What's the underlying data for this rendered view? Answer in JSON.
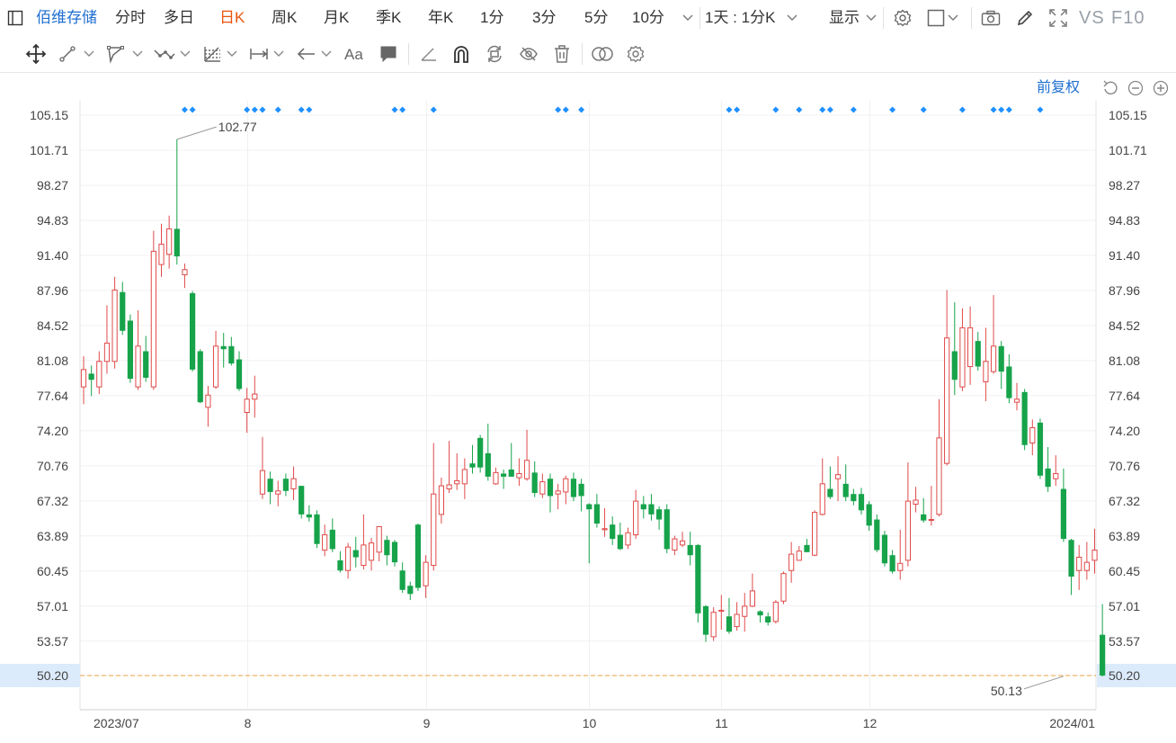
{
  "topbar": {
    "stock_name": "佰维存储",
    "periods": [
      "分时",
      "多日",
      "日K",
      "周K",
      "月K",
      "季K",
      "年K",
      "1分",
      "3分",
      "5分",
      "10分"
    ],
    "active_period": "日K",
    "combo_label": "1天 : 1分K",
    "display_label": "显示",
    "vs_label": "VS",
    "f10_label": "F10"
  },
  "controls": {
    "adjust_label": "前复权"
  },
  "colors": {
    "up": "#e04a4a",
    "down": "#16a34a",
    "active_tab": "#e8540c",
    "link": "#1f6fd1",
    "price_line": "#f0a040",
    "price_highlight_bg": "#dcebfb",
    "event_marker": "#1e90ff"
  },
  "chart_data": {
    "type": "candlestick",
    "y_ticks": [
      "105.15",
      "101.71",
      "98.27",
      "94.83",
      "91.40",
      "87.96",
      "84.52",
      "81.08",
      "77.64",
      "74.20",
      "70.76",
      "67.32",
      "63.89",
      "60.45",
      "57.01",
      "53.57",
      "50.20"
    ],
    "ylim": [
      50.2,
      105.15
    ],
    "x_labels": [
      "2023/07",
      "8",
      "9",
      "10",
      "11",
      "12",
      "2024/01"
    ],
    "x_label_index": [
      0,
      21,
      44,
      65,
      82,
      101,
      126
    ],
    "max_marker": {
      "index": 12,
      "value": "102.77"
    },
    "min_marker": {
      "index": 126,
      "value": "50.13"
    },
    "current_price": "50.20",
    "event_marker_index": [
      13,
      14,
      21,
      22,
      23,
      25,
      28,
      29,
      40,
      41,
      45,
      61,
      62,
      64,
      83,
      84,
      89,
      92,
      95,
      96,
      99,
      104,
      108,
      113,
      117,
      118,
      119,
      123
    ],
    "candles": [
      {
        "o": 78.5,
        "h": 81.5,
        "l": 76.8,
        "c": 80.2
      },
      {
        "o": 79.8,
        "h": 80.6,
        "l": 77.6,
        "c": 79.2
      },
      {
        "o": 78.5,
        "h": 82.0,
        "l": 77.8,
        "c": 81.0
      },
      {
        "o": 81.0,
        "h": 86.5,
        "l": 79.8,
        "c": 82.8
      },
      {
        "o": 81.0,
        "h": 89.3,
        "l": 80.3,
        "c": 88.0
      },
      {
        "o": 87.8,
        "h": 88.8,
        "l": 83.6,
        "c": 84.0
      },
      {
        "o": 85.0,
        "h": 85.6,
        "l": 78.9,
        "c": 79.3
      },
      {
        "o": 78.5,
        "h": 86.0,
        "l": 78.2,
        "c": 82.5
      },
      {
        "o": 82.0,
        "h": 83.5,
        "l": 79.0,
        "c": 79.4
      },
      {
        "o": 78.5,
        "h": 93.8,
        "l": 78.2,
        "c": 91.8
      },
      {
        "o": 90.5,
        "h": 94.5,
        "l": 89.3,
        "c": 92.5
      },
      {
        "o": 91.5,
        "h": 95.3,
        "l": 90.1,
        "c": 94.0
      },
      {
        "o": 94.0,
        "h": 102.8,
        "l": 90.5,
        "c": 91.3
      },
      {
        "o": 89.5,
        "h": 90.6,
        "l": 88.2,
        "c": 90.0
      },
      {
        "o": 87.7,
        "h": 87.9,
        "l": 80.0,
        "c": 80.2
      },
      {
        "o": 82.0,
        "h": 82.2,
        "l": 76.9,
        "c": 77.0
      },
      {
        "o": 76.5,
        "h": 78.6,
        "l": 74.6,
        "c": 77.7
      },
      {
        "o": 78.5,
        "h": 84.0,
        "l": 78.3,
        "c": 82.5
      },
      {
        "o": 82.5,
        "h": 83.8,
        "l": 80.4,
        "c": 82.2
      },
      {
        "o": 82.5,
        "h": 83.4,
        "l": 80.6,
        "c": 80.8
      },
      {
        "o": 81.2,
        "h": 82.0,
        "l": 78.1,
        "c": 78.3
      },
      {
        "o": 76.0,
        "h": 78.4,
        "l": 74.0,
        "c": 77.3
      },
      {
        "o": 77.3,
        "h": 79.6,
        "l": 75.5,
        "c": 77.8
      },
      {
        "o": 68.0,
        "h": 73.6,
        "l": 67.5,
        "c": 70.3
      },
      {
        "o": 69.5,
        "h": 70.2,
        "l": 67.0,
        "c": 68.2
      },
      {
        "o": 68.0,
        "h": 69.3,
        "l": 66.8,
        "c": 68.3
      },
      {
        "o": 69.5,
        "h": 70.0,
        "l": 67.8,
        "c": 68.3
      },
      {
        "o": 68.5,
        "h": 70.7,
        "l": 67.4,
        "c": 69.5
      },
      {
        "o": 68.8,
        "h": 68.8,
        "l": 65.6,
        "c": 66.0
      },
      {
        "o": 66.0,
        "h": 66.9,
        "l": 65.3,
        "c": 65.7
      },
      {
        "o": 66.0,
        "h": 66.4,
        "l": 62.7,
        "c": 63.1
      },
      {
        "o": 62.5,
        "h": 65.0,
        "l": 61.9,
        "c": 64.0
      },
      {
        "o": 64.5,
        "h": 65.6,
        "l": 62.3,
        "c": 62.6
      },
      {
        "o": 61.5,
        "h": 62.4,
        "l": 60.3,
        "c": 60.5
      },
      {
        "o": 60.5,
        "h": 63.2,
        "l": 59.7,
        "c": 62.8
      },
      {
        "o": 62.5,
        "h": 63.8,
        "l": 60.8,
        "c": 61.8
      },
      {
        "o": 61.0,
        "h": 66.0,
        "l": 60.6,
        "c": 63.0
      },
      {
        "o": 61.5,
        "h": 63.7,
        "l": 60.5,
        "c": 63.2
      },
      {
        "o": 62.3,
        "h": 64.8,
        "l": 61.4,
        "c": 64.8
      },
      {
        "o": 63.5,
        "h": 63.9,
        "l": 61.0,
        "c": 62.0
      },
      {
        "o": 63.3,
        "h": 63.5,
        "l": 60.9,
        "c": 61.3
      },
      {
        "o": 60.5,
        "h": 61.3,
        "l": 58.3,
        "c": 58.6
      },
      {
        "o": 59.0,
        "h": 59.4,
        "l": 57.6,
        "c": 58.2
      },
      {
        "o": 65.0,
        "h": 65.1,
        "l": 58.5,
        "c": 58.8
      },
      {
        "o": 59.0,
        "h": 62.0,
        "l": 57.8,
        "c": 61.3
      },
      {
        "o": 61.0,
        "h": 73.0,
        "l": 60.5,
        "c": 68.0
      },
      {
        "o": 66.0,
        "h": 69.6,
        "l": 65.1,
        "c": 68.8
      },
      {
        "o": 68.5,
        "h": 73.2,
        "l": 68.1,
        "c": 68.9
      },
      {
        "o": 69.0,
        "h": 72.0,
        "l": 68.4,
        "c": 69.3
      },
      {
        "o": 69.0,
        "h": 71.5,
        "l": 67.5,
        "c": 70.4
      },
      {
        "o": 71.0,
        "h": 72.8,
        "l": 70.0,
        "c": 70.6
      },
      {
        "o": 73.5,
        "h": 73.8,
        "l": 70.1,
        "c": 70.6
      },
      {
        "o": 72.0,
        "h": 74.9,
        "l": 69.3,
        "c": 69.7
      },
      {
        "o": 69.0,
        "h": 70.6,
        "l": 68.9,
        "c": 70.1
      },
      {
        "o": 70.0,
        "h": 70.4,
        "l": 68.5,
        "c": 69.7
      },
      {
        "o": 70.4,
        "h": 73.0,
        "l": 69.7,
        "c": 69.7
      },
      {
        "o": 69.6,
        "h": 71.5,
        "l": 68.8,
        "c": 70.0
      },
      {
        "o": 69.5,
        "h": 74.3,
        "l": 69.3,
        "c": 71.3
      },
      {
        "o": 70.1,
        "h": 71.2,
        "l": 67.7,
        "c": 68.1
      },
      {
        "o": 68.0,
        "h": 70.0,
        "l": 67.6,
        "c": 69.2
      },
      {
        "o": 69.5,
        "h": 70.0,
        "l": 66.2,
        "c": 67.8
      },
      {
        "o": 68.0,
        "h": 69.0,
        "l": 66.5,
        "c": 68.3
      },
      {
        "o": 68.2,
        "h": 69.8,
        "l": 67.0,
        "c": 69.5
      },
      {
        "o": 69.5,
        "h": 70.1,
        "l": 67.3,
        "c": 67.7
      },
      {
        "o": 69.0,
        "h": 69.5,
        "l": 66.3,
        "c": 67.8
      },
      {
        "o": 67.0,
        "h": 67.1,
        "l": 61.2,
        "c": 66.5
      },
      {
        "o": 67.0,
        "h": 68.0,
        "l": 64.7,
        "c": 65.1
      },
      {
        "o": 64.5,
        "h": 66.6,
        "l": 63.8,
        "c": 64.6
      },
      {
        "o": 65.0,
        "h": 65.8,
        "l": 63.0,
        "c": 63.6
      },
      {
        "o": 64.0,
        "h": 65.2,
        "l": 62.5,
        "c": 62.6
      },
      {
        "o": 63.0,
        "h": 64.7,
        "l": 62.6,
        "c": 64.2
      },
      {
        "o": 64.0,
        "h": 68.4,
        "l": 63.6,
        "c": 67.3
      },
      {
        "o": 67.0,
        "h": 67.8,
        "l": 65.6,
        "c": 66.5
      },
      {
        "o": 67.0,
        "h": 68.0,
        "l": 65.4,
        "c": 66.0
      },
      {
        "o": 66.5,
        "h": 66.8,
        "l": 64.5,
        "c": 65.5
      },
      {
        "o": 66.5,
        "h": 67.0,
        "l": 62.2,
        "c": 62.6
      },
      {
        "o": 62.5,
        "h": 63.9,
        "l": 62.0,
        "c": 63.6
      },
      {
        "o": 63.0,
        "h": 64.3,
        "l": 62.8,
        "c": 63.4
      },
      {
        "o": 63.0,
        "h": 64.3,
        "l": 61.0,
        "c": 62.0
      },
      {
        "o": 63.0,
        "h": 63.1,
        "l": 55.4,
        "c": 56.3
      },
      {
        "o": 57.0,
        "h": 57.1,
        "l": 53.5,
        "c": 54.2
      },
      {
        "o": 54.0,
        "h": 56.9,
        "l": 53.6,
        "c": 56.4
      },
      {
        "o": 56.5,
        "h": 58.1,
        "l": 54.7,
        "c": 56.6
      },
      {
        "o": 56.0,
        "h": 57.8,
        "l": 54.3,
        "c": 54.5
      },
      {
        "o": 55.0,
        "h": 57.4,
        "l": 54.6,
        "c": 56.2
      },
      {
        "o": 56.0,
        "h": 58.3,
        "l": 54.5,
        "c": 57.0
      },
      {
        "o": 57.0,
        "h": 60.2,
        "l": 56.9,
        "c": 58.5
      },
      {
        "o": 56.5,
        "h": 56.6,
        "l": 55.4,
        "c": 56.1
      },
      {
        "o": 56.0,
        "h": 56.4,
        "l": 55.1,
        "c": 55.4
      },
      {
        "o": 55.5,
        "h": 57.6,
        "l": 55.3,
        "c": 57.4
      },
      {
        "o": 57.5,
        "h": 60.4,
        "l": 57.2,
        "c": 60.2
      },
      {
        "o": 60.5,
        "h": 63.3,
        "l": 59.3,
        "c": 62.1
      },
      {
        "o": 61.5,
        "h": 62.9,
        "l": 61.5,
        "c": 62.4
      },
      {
        "o": 63.0,
        "h": 63.6,
        "l": 62.3,
        "c": 62.3
      },
      {
        "o": 62.0,
        "h": 66.4,
        "l": 61.9,
        "c": 66.2
      },
      {
        "o": 66.0,
        "h": 71.5,
        "l": 65.9,
        "c": 69.0
      },
      {
        "o": 68.5,
        "h": 70.7,
        "l": 67.5,
        "c": 67.7
      },
      {
        "o": 69.5,
        "h": 71.7,
        "l": 67.3,
        "c": 69.9
      },
      {
        "o": 69.0,
        "h": 70.9,
        "l": 67.3,
        "c": 67.7
      },
      {
        "o": 68.0,
        "h": 68.5,
        "l": 66.9,
        "c": 67.3
      },
      {
        "o": 68.0,
        "h": 68.6,
        "l": 66.0,
        "c": 66.4
      },
      {
        "o": 67.0,
        "h": 67.3,
        "l": 64.4,
        "c": 64.9
      },
      {
        "o": 65.5,
        "h": 66.0,
        "l": 62.3,
        "c": 62.5
      },
      {
        "o": 64.0,
        "h": 64.4,
        "l": 60.9,
        "c": 61.2
      },
      {
        "o": 62.0,
        "h": 62.5,
        "l": 60.2,
        "c": 60.4
      },
      {
        "o": 60.5,
        "h": 64.5,
        "l": 59.6,
        "c": 61.2
      },
      {
        "o": 61.5,
        "h": 71.1,
        "l": 60.9,
        "c": 67.3
      },
      {
        "o": 67.0,
        "h": 68.7,
        "l": 66.2,
        "c": 67.4
      },
      {
        "o": 66.0,
        "h": 67.6,
        "l": 65.2,
        "c": 65.4
      },
      {
        "o": 65.5,
        "h": 68.8,
        "l": 64.9,
        "c": 65.5
      },
      {
        "o": 66.0,
        "h": 77.3,
        "l": 65.8,
        "c": 73.5
      },
      {
        "o": 71.0,
        "h": 88.0,
        "l": 70.8,
        "c": 83.3
      },
      {
        "o": 82.0,
        "h": 86.8,
        "l": 77.7,
        "c": 79.2
      },
      {
        "o": 78.5,
        "h": 86.2,
        "l": 78.1,
        "c": 84.3
      },
      {
        "o": 80.5,
        "h": 86.4,
        "l": 78.7,
        "c": 84.3
      },
      {
        "o": 83.0,
        "h": 83.9,
        "l": 80.1,
        "c": 80.5
      },
      {
        "o": 79.0,
        "h": 84.3,
        "l": 77.1,
        "c": 81.0
      },
      {
        "o": 80.0,
        "h": 87.5,
        "l": 79.8,
        "c": 82.5
      },
      {
        "o": 82.5,
        "h": 83.0,
        "l": 78.3,
        "c": 80.0
      },
      {
        "o": 80.5,
        "h": 81.7,
        "l": 76.9,
        "c": 77.4
      },
      {
        "o": 77.0,
        "h": 78.9,
        "l": 76.2,
        "c": 77.3
      },
      {
        "o": 78.0,
        "h": 78.3,
        "l": 72.3,
        "c": 72.8
      },
      {
        "o": 73.0,
        "h": 75.3,
        "l": 71.8,
        "c": 74.5
      },
      {
        "o": 75.0,
        "h": 75.4,
        "l": 69.5,
        "c": 69.8
      },
      {
        "o": 70.5,
        "h": 72.6,
        "l": 68.2,
        "c": 68.7
      },
      {
        "o": 69.5,
        "h": 71.8,
        "l": 68.8,
        "c": 70.0
      },
      {
        "o": 68.5,
        "h": 70.5,
        "l": 63.3,
        "c": 63.6
      },
      {
        "o": 63.5,
        "h": 63.6,
        "l": 58.1,
        "c": 59.9
      },
      {
        "o": 60.5,
        "h": 63.0,
        "l": 58.6,
        "c": 61.8
      },
      {
        "o": 60.5,
        "h": 63.3,
        "l": 59.6,
        "c": 61.3
      },
      {
        "o": 61.5,
        "h": 64.6,
        "l": 60.2,
        "c": 62.5
      },
      {
        "o": 54.2,
        "h": 57.2,
        "l": 50.1,
        "c": 50.2
      }
    ]
  }
}
